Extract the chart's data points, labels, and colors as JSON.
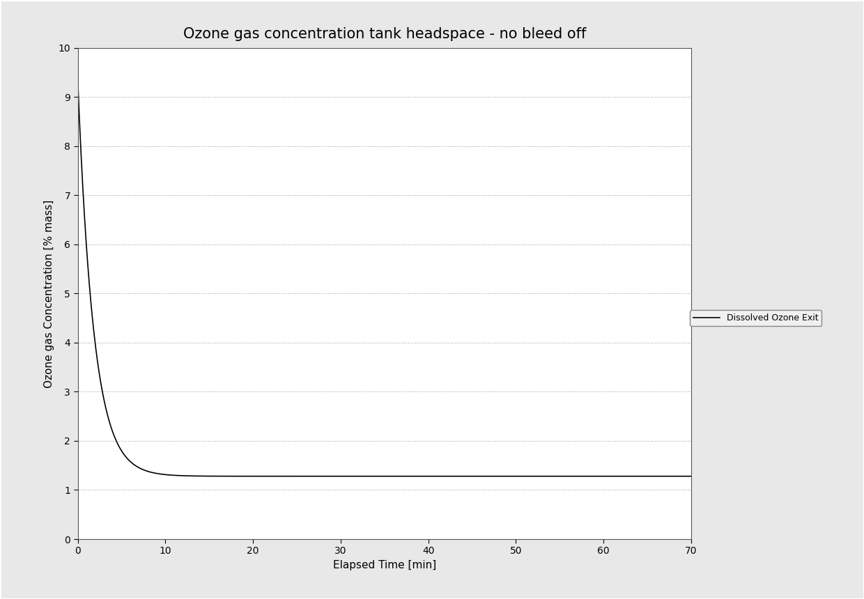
{
  "title": "Ozone gas concentration tank headspace - no bleed off",
  "xlabel": "Elapsed Time [min]",
  "ylabel": "Ozone gas Concentration [% mass]",
  "xlim": [
    0,
    70
  ],
  "ylim": [
    0,
    10
  ],
  "xticks": [
    0,
    10,
    20,
    30,
    40,
    50,
    60,
    70
  ],
  "yticks": [
    0,
    1,
    2,
    3,
    4,
    5,
    6,
    7,
    8,
    9,
    10
  ],
  "legend_label": "Dissolved Ozone Exit",
  "line_color": "#000000",
  "grid_color": "#bbbbbb",
  "background_color": "#e8e8e8",
  "plot_bg_color": "#ffffff",
  "border_color": "#888888",
  "curve_start_y": 9.35,
  "curve_asymptote": 1.28,
  "curve_decay_rate": 0.55,
  "title_fontsize": 15,
  "axis_label_fontsize": 11,
  "tick_fontsize": 10,
  "legend_fontsize": 9
}
